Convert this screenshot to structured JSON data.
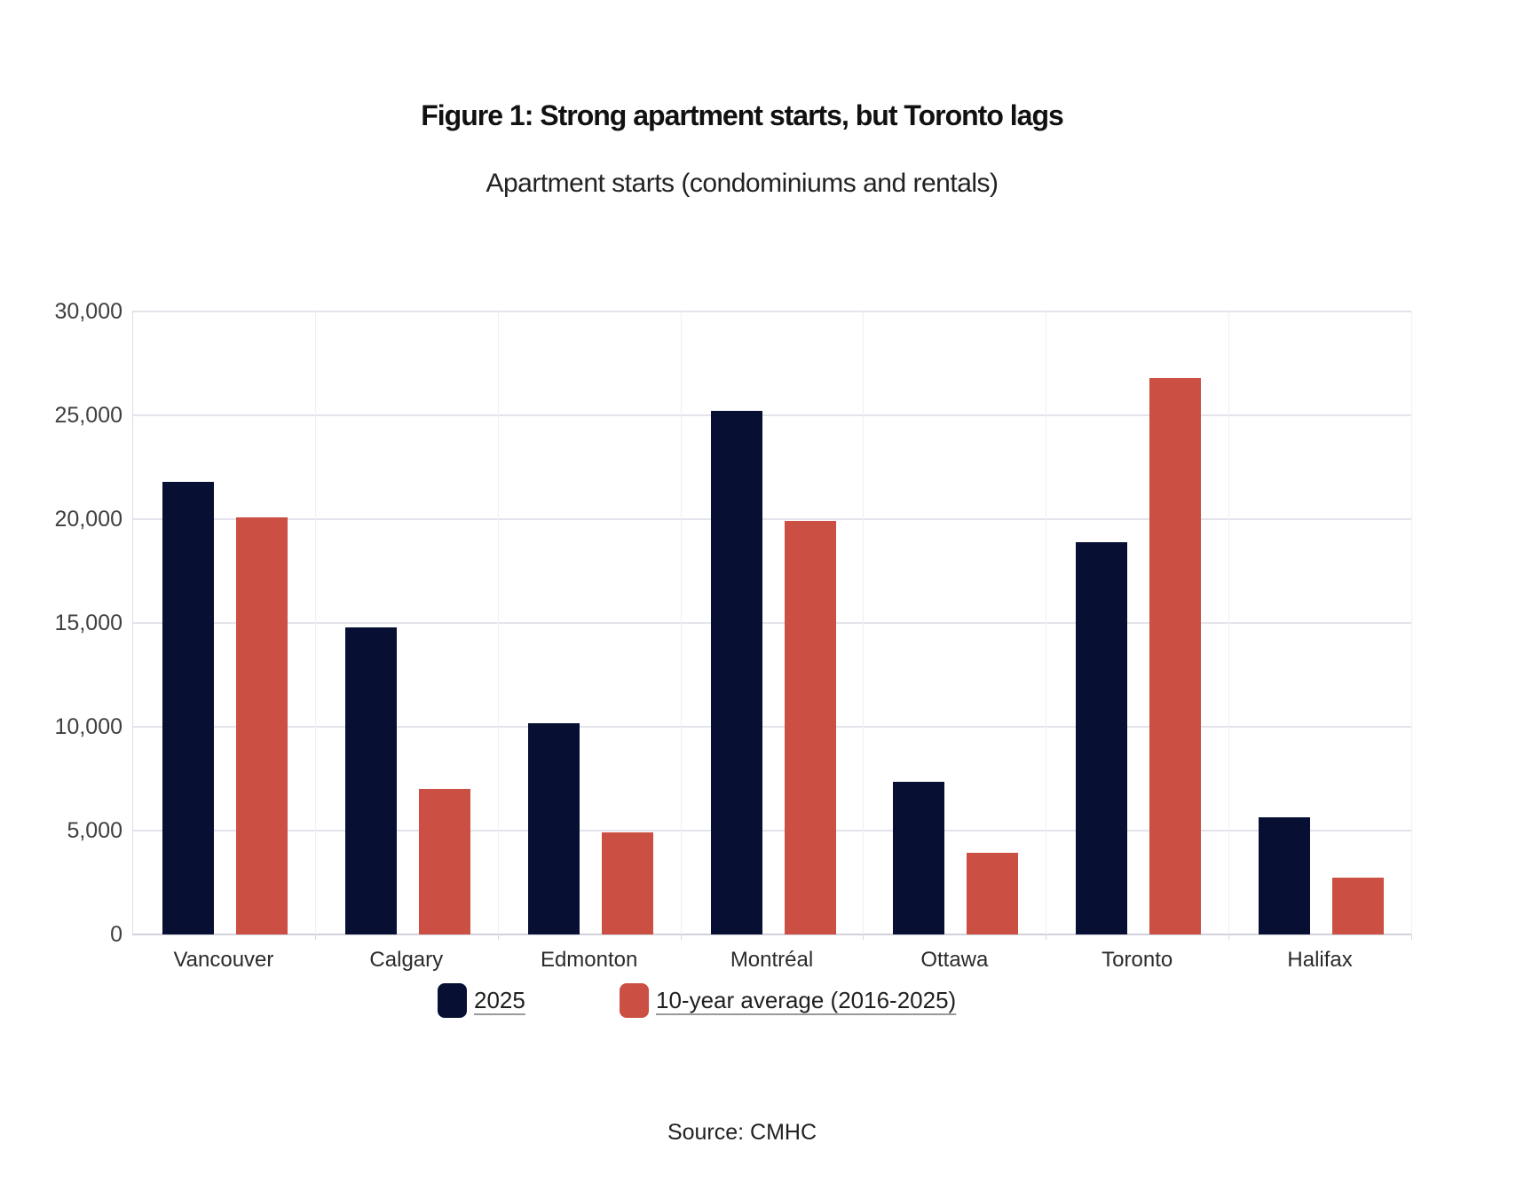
{
  "header": {
    "title": "Figure 1: Strong apartment starts, but Toronto lags",
    "subtitle": "Apartment starts (condominiums and rentals)"
  },
  "footer": {
    "source": "Source: CMHC"
  },
  "colors": {
    "series_2025": "#071033",
    "series_10yr_average": "#cc4f43",
    "horizontal_gridline": "#e3e3eb",
    "vertical_gridline": "#f0f0f5",
    "axis_line": "#d2d2da",
    "tick_label": "#3f3f3f",
    "category_label": "#2b2b2b",
    "title_text": "#111111",
    "legend_text": "#1f1f1f",
    "source_text": "#222222"
  },
  "chart_data": {
    "type": "bar",
    "title": "Figure 1: Strong apartment starts, but Toronto lags",
    "subtitle": "Apartment starts (condominiums and rentals)",
    "categories": [
      "Vancouver",
      "Calgary",
      "Edmonton",
      "Montréal",
      "Ottawa",
      "Toronto",
      "Halifax"
    ],
    "series": [
      {
        "key": "2025",
        "name": "2025",
        "color": "#071033",
        "values": [
          21800,
          14800,
          10150,
          25200,
          7350,
          18900,
          5650
        ]
      },
      {
        "key": "10yr-average",
        "name": "10-year average (2016-2025)",
        "color": "#cc4f43",
        "values": [
          20100,
          7000,
          4900,
          19900,
          3950,
          26800,
          2750
        ]
      }
    ],
    "ylabel": "",
    "xlabel": "",
    "ylim": [
      0,
      30000
    ],
    "ytick_step": 5000,
    "ytick_labels": [
      "0",
      "5,000",
      "10,000",
      "15,000",
      "20,000",
      "25,000",
      "30,000"
    ],
    "grid": "horizontal solid, faint vertical category separators",
    "legend_position": "bottom",
    "source": "Source: CMHC"
  }
}
